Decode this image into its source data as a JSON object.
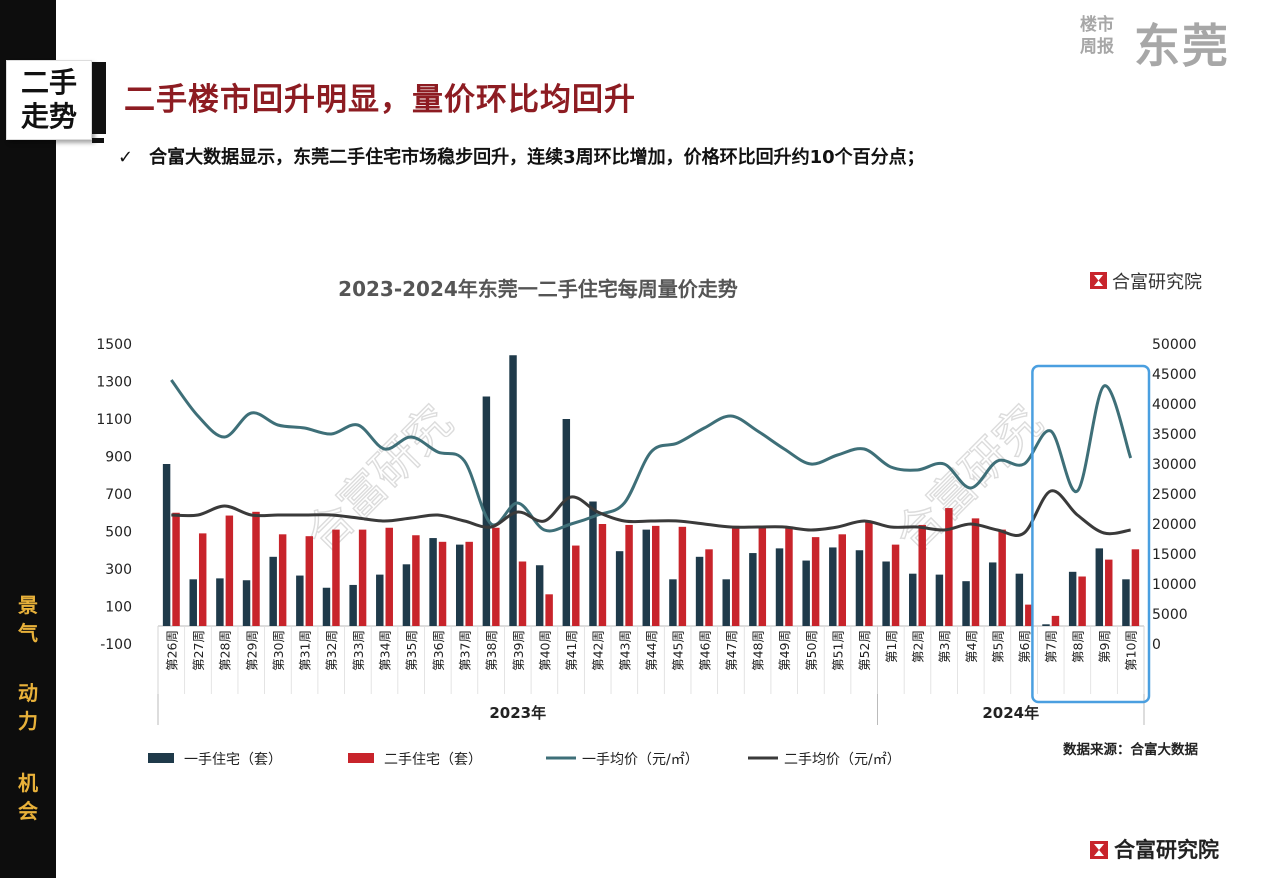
{
  "header": {
    "section_line1": "二手",
    "section_line2": "走势",
    "headline": "二手楼市回升明显，量价环比均回升",
    "brand_small_line1": "楼市",
    "brand_small_line2": "周报",
    "brand_big": "东莞",
    "bullet": "合富大数据显示，东莞二手住宅市场稳步回升，连续3周环比增加，价格环比回升约10个百分点；",
    "bullet_icon": "check-icon"
  },
  "sidebar": {
    "words": [
      "景",
      "气",
      "动",
      "力",
      "机",
      "会"
    ]
  },
  "footer": {
    "brand": "合富研究院",
    "brand_icon": "hefu-logo-icon"
  },
  "chart_data": {
    "type": "bar",
    "title": "2023-2024年东莞一二手住宅每周量价走势",
    "brand": "合富研究院",
    "watermark": "合富研究",
    "source": "数据来源：合富大数据",
    "categories": [
      "第26周",
      "第27周",
      "第28周",
      "第29周",
      "第30周",
      "第31周",
      "第32周",
      "第33周",
      "第34周",
      "第35周",
      "第36周",
      "第37周",
      "第38周",
      "第39周",
      "第40周",
      "第41周",
      "第42周",
      "第43周",
      "第44周",
      "第45周",
      "第46周",
      "第47周",
      "第48周",
      "第49周",
      "第50周",
      "第51周",
      "第52周",
      "第1周",
      "第2周",
      "第3周",
      "第4周",
      "第5周",
      "第6周",
      "第7周",
      "第8周",
      "第9周",
      "第10周"
    ],
    "groups": [
      {
        "label": "2023年",
        "start": 0,
        "end": 26
      },
      {
        "label": "2024年",
        "start": 27,
        "end": 36
      }
    ],
    "left_axis": {
      "min": -100,
      "max": 1500,
      "ticks": [
        1500,
        1300,
        1100,
        900,
        700,
        500,
        300,
        100,
        -100
      ]
    },
    "right_axis": {
      "min": 0,
      "max": 50000,
      "ticks": [
        50000,
        45000,
        40000,
        35000,
        30000,
        25000,
        20000,
        15000,
        10000,
        5000,
        0
      ]
    },
    "series": [
      {
        "name": "一手住宅（套）",
        "type": "bar",
        "axis": "left",
        "color": "#1f3a4a",
        "values": [
          860,
          245,
          250,
          240,
          365,
          265,
          200,
          215,
          270,
          325,
          465,
          430,
          1220,
          1440,
          320,
          1100,
          660,
          395,
          510,
          245,
          365,
          245,
          385,
          410,
          345,
          415,
          400,
          340,
          275,
          270,
          235,
          335,
          275,
          5,
          285,
          410,
          245
        ]
      },
      {
        "name": "二手住宅（套）",
        "type": "bar",
        "axis": "left",
        "color": "#c8242b",
        "values": [
          600,
          490,
          585,
          605,
          485,
          475,
          510,
          510,
          520,
          480,
          445,
          445,
          520,
          340,
          165,
          425,
          540,
          535,
          530,
          525,
          405,
          530,
          530,
          525,
          470,
          485,
          550,
          430,
          535,
          625,
          570,
          510,
          110,
          50,
          260,
          350,
          405
        ]
      },
      {
        "name": "一手均价（元/㎡）",
        "type": "line",
        "axis": "right",
        "color": "#3e6f78",
        "values": [
          44000,
          38000,
          34500,
          38500,
          36500,
          36000,
          35000,
          36500,
          32500,
          34500,
          32000,
          30500,
          20000,
          23500,
          19000,
          20000,
          21500,
          23500,
          32000,
          33500,
          36000,
          38000,
          35500,
          32500,
          30000,
          31500,
          32500,
          29500,
          29000,
          30000,
          26000,
          30500,
          30000,
          35500,
          25500,
          43000,
          31000
        ]
      },
      {
        "name": "二手均价（元/㎡）",
        "type": "line",
        "axis": "right",
        "color": "#3a3a3a",
        "values": [
          21500,
          21500,
          23000,
          21500,
          21500,
          21500,
          21500,
          21000,
          20500,
          21000,
          21500,
          20500,
          19500,
          22000,
          20500,
          24500,
          22000,
          20500,
          20500,
          20500,
          20000,
          19500,
          19500,
          19500,
          19000,
          19500,
          20500,
          19500,
          19500,
          19000,
          20000,
          19000,
          18500,
          25500,
          21500,
          18500,
          19000
        ]
      }
    ],
    "legend_position": "bottom",
    "highlight": {
      "start": 33,
      "end": 36,
      "color": "#4a9fe0"
    }
  }
}
